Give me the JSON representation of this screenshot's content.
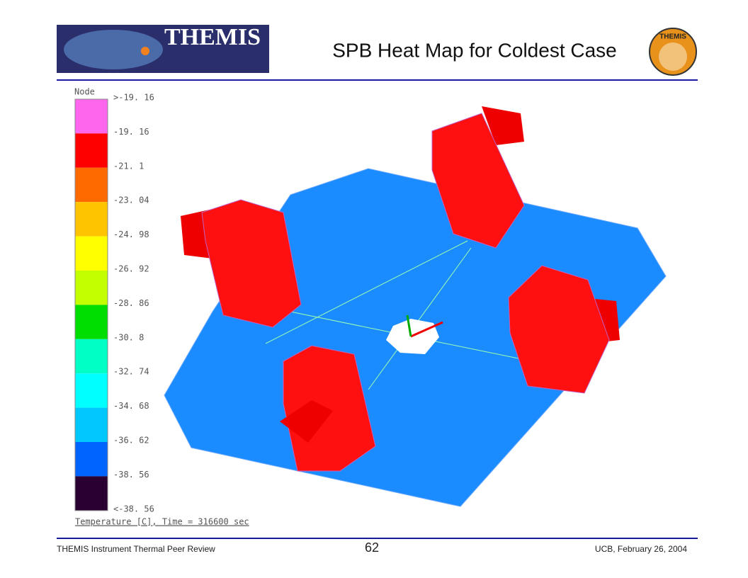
{
  "header": {
    "title": "SPB Heat Map for Coldest Case",
    "logo_text": "THEMIS",
    "badge_text": "THEMIS"
  },
  "legend": {
    "title": "Node",
    "labels": [
      ">-19. 16",
      "-19. 16",
      "-21. 1",
      "-23. 04",
      "-24. 98",
      "-26. 92",
      "-28. 86",
      "-30. 8",
      "-32. 74",
      "-34. 68",
      "-36. 62",
      "-38. 56",
      "<-38. 56"
    ],
    "colors": [
      "#ff66ee",
      "#ff0000",
      "#ff6a00",
      "#ffc400",
      "#ffff00",
      "#c4ff00",
      "#00dd00",
      "#00ffc4",
      "#00ffff",
      "#00c8ff",
      "#0064ff",
      "#2a0033"
    ],
    "caption": "Temperature [C], Time = 316600 sec"
  },
  "footer": {
    "left": "THEMIS Instrument Thermal Peer Review",
    "page": "62",
    "right": "UCB, February 26, 2004"
  }
}
